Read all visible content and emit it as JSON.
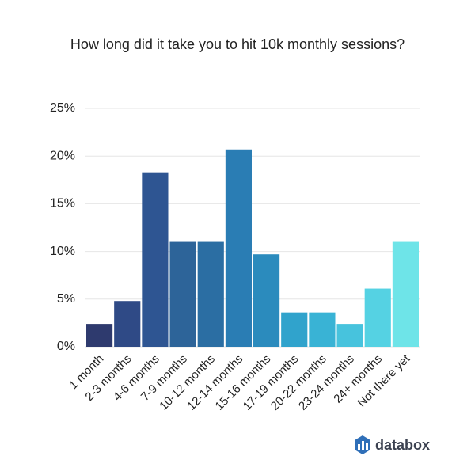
{
  "chart_data": {
    "type": "bar",
    "title": "How long did it take you to hit 10k monthly sessions?",
    "categories": [
      "1 month",
      "2-3 months",
      "4-6 months",
      "7-9 months",
      "10-12 months",
      "12-14 months",
      "15-16 months",
      "17-19 months",
      "20-22 months",
      "23-24 months",
      "24+ months",
      "Not there yet"
    ],
    "values": [
      2.4,
      4.8,
      18.3,
      11.0,
      11.0,
      20.7,
      9.7,
      3.6,
      3.6,
      2.4,
      6.1,
      11.0
    ],
    "colors": [
      "#2e3a6e",
      "#2f4a86",
      "#2e5592",
      "#2d6499",
      "#2b6ea3",
      "#2a7db4",
      "#2b8bbd",
      "#30a3cc",
      "#39b3d5",
      "#47c3dd",
      "#55d2e3",
      "#6ee4e8"
    ],
    "ylim": [
      0,
      25
    ],
    "yticks": [
      {
        "value": 0,
        "label": "0%"
      },
      {
        "value": 5,
        "label": "5%"
      },
      {
        "value": 10,
        "label": "10%"
      },
      {
        "value": 15,
        "label": "15%"
      },
      {
        "value": 20,
        "label": "20%"
      },
      {
        "value": 25,
        "label": "25%"
      }
    ],
    "grid": true
  },
  "brand": "databox"
}
